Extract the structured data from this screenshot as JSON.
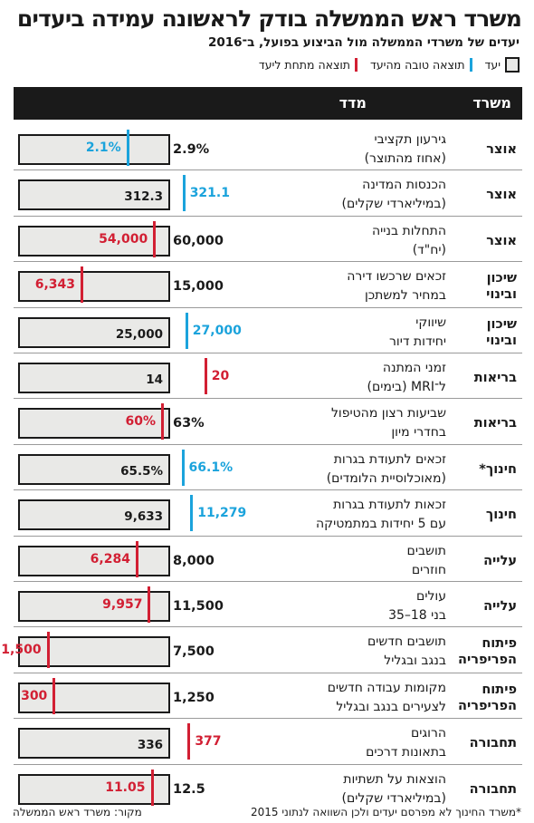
{
  "title": "משרד ראש הממשלה בודק לראשונה עמידה ביעדים",
  "subtitle": "יעדים של משרדי הממשלה מול הביצוע בפועל, ב־2016",
  "legend": {
    "target": "יעד",
    "good": "תוצאה טובה מהיעד",
    "bad": "תוצאה מתחת ליעד"
  },
  "colors": {
    "good": "#1ba3dc",
    "bad": "#d21f33",
    "bar_fill": "#e9e9e7",
    "header": "#1a1a1a"
  },
  "columns": {
    "ministry": "משרד",
    "measure": "מדד"
  },
  "footer": {
    "note": "*משרד החינוך לא מפרסם יעדים ולכן השוואה לנתוני 2015",
    "source": "מקור: משרד ראש הממשלה"
  },
  "chart_data": {
    "type": "bar",
    "rows": [
      {
        "ministry": [
          "אוצר"
        ],
        "measure": [
          "גירעון תקציבי",
          "(אחוז מהתוצר)"
        ],
        "target_label": "2.9%",
        "result_label": "2.1%",
        "target": 2.9,
        "result": 2.1,
        "status": "good"
      },
      {
        "ministry": [
          "אוצר"
        ],
        "measure": [
          "הכנסות המדינה",
          "(במיליארדי שקלים)"
        ],
        "target_label": "",
        "inner_label": "312.3",
        "result_label": "321.1",
        "target": 312.3,
        "result": 321.1,
        "status": "good"
      },
      {
        "ministry": [
          "אוצר"
        ],
        "measure": [
          "התחלות בנייה",
          "(יח\"ד)"
        ],
        "target_label": "60,000",
        "result_label": "54,000",
        "target": 60000,
        "result": 54000,
        "status": "bad"
      },
      {
        "ministry": [
          "שיכון",
          "ובינוי"
        ],
        "measure": [
          "זכאים שרכשו דירה",
          "במחיר למשתכן"
        ],
        "target_label": "15,000",
        "result_label": "6,343",
        "target": 15000,
        "result": 6343,
        "status": "bad"
      },
      {
        "ministry": [
          "שיכון",
          "ובינוי"
        ],
        "measure": [
          "שיווקי",
          "יחידות דיור"
        ],
        "target_label": "",
        "inner_label": "25,000",
        "result_label": "27,000",
        "target": 25000,
        "result": 27000,
        "status": "good"
      },
      {
        "ministry": [
          "בריאות"
        ],
        "measure": [
          "זמני המתנה",
          "ל־MRI (בימים)"
        ],
        "target_label": "",
        "inner_label": "14",
        "result_label": "20",
        "target": 14,
        "result": 20,
        "status": "bad"
      },
      {
        "ministry": [
          "בריאות"
        ],
        "measure": [
          "שביעות רצון מהטיפול",
          "בחדרי מיון"
        ],
        "target_label": "63%",
        "result_label": "60%",
        "target": 63,
        "result": 60,
        "status": "bad"
      },
      {
        "ministry": [
          "חינוך*"
        ],
        "measure": [
          "זכאים לתעודת בגרות",
          "(מאוכלוסיית הלומדים)"
        ],
        "target_label": "",
        "inner_label": "65.5%",
        "result_label": "66.1%",
        "target": 65.5,
        "result": 66.1,
        "status": "good"
      },
      {
        "ministry": [
          "חינוך"
        ],
        "measure": [
          "זכאות לתעודת בגרות",
          "עם 5 יחידות במתמטיקה"
        ],
        "target_label": "",
        "inner_label": "9,633",
        "result_label": "11,279",
        "target": 9633,
        "result": 11279,
        "status": "good"
      },
      {
        "ministry": [
          "עלייה"
        ],
        "measure": [
          "תושבים",
          "חוזרים"
        ],
        "target_label": "8,000",
        "result_label": "6,284",
        "target": 8000,
        "result": 6284,
        "status": "bad"
      },
      {
        "ministry": [
          "עלייה"
        ],
        "measure": [
          "עולים",
          "בני 18–35"
        ],
        "target_label": "11,500",
        "result_label": "9,957",
        "target": 11500,
        "result": 9957,
        "status": "bad"
      },
      {
        "ministry": [
          "פיתוח",
          "הפריפריה"
        ],
        "measure": [
          "תושבים חדשים",
          "בנגב ובגליל"
        ],
        "target_label": "7,500",
        "result_label": "1,500",
        "target": 7500,
        "result": 1500,
        "status": "bad"
      },
      {
        "ministry": [
          "פיתוח",
          "הפריפריה"
        ],
        "measure": [
          "מקומות עבודה חדשים",
          "לצעירים בנגב ובגליל"
        ],
        "target_label": "1,250",
        "result_label": "300",
        "target": 1250,
        "result": 300,
        "status": "bad"
      },
      {
        "ministry": [
          "תחבורה"
        ],
        "measure": [
          "הרוגים",
          "בתאונות דרכים"
        ],
        "target_label": "",
        "inner_label": "336",
        "result_label": "377",
        "target": 336,
        "result": 377,
        "status": "bad"
      },
      {
        "ministry": [
          "תחבורה"
        ],
        "measure": [
          "הוצאות על תשתיות",
          "(במיליארדי שקלים)"
        ],
        "target_label": "12.5",
        "result_label": "11.05",
        "target": 12.5,
        "result": 11.05,
        "status": "bad"
      }
    ]
  }
}
